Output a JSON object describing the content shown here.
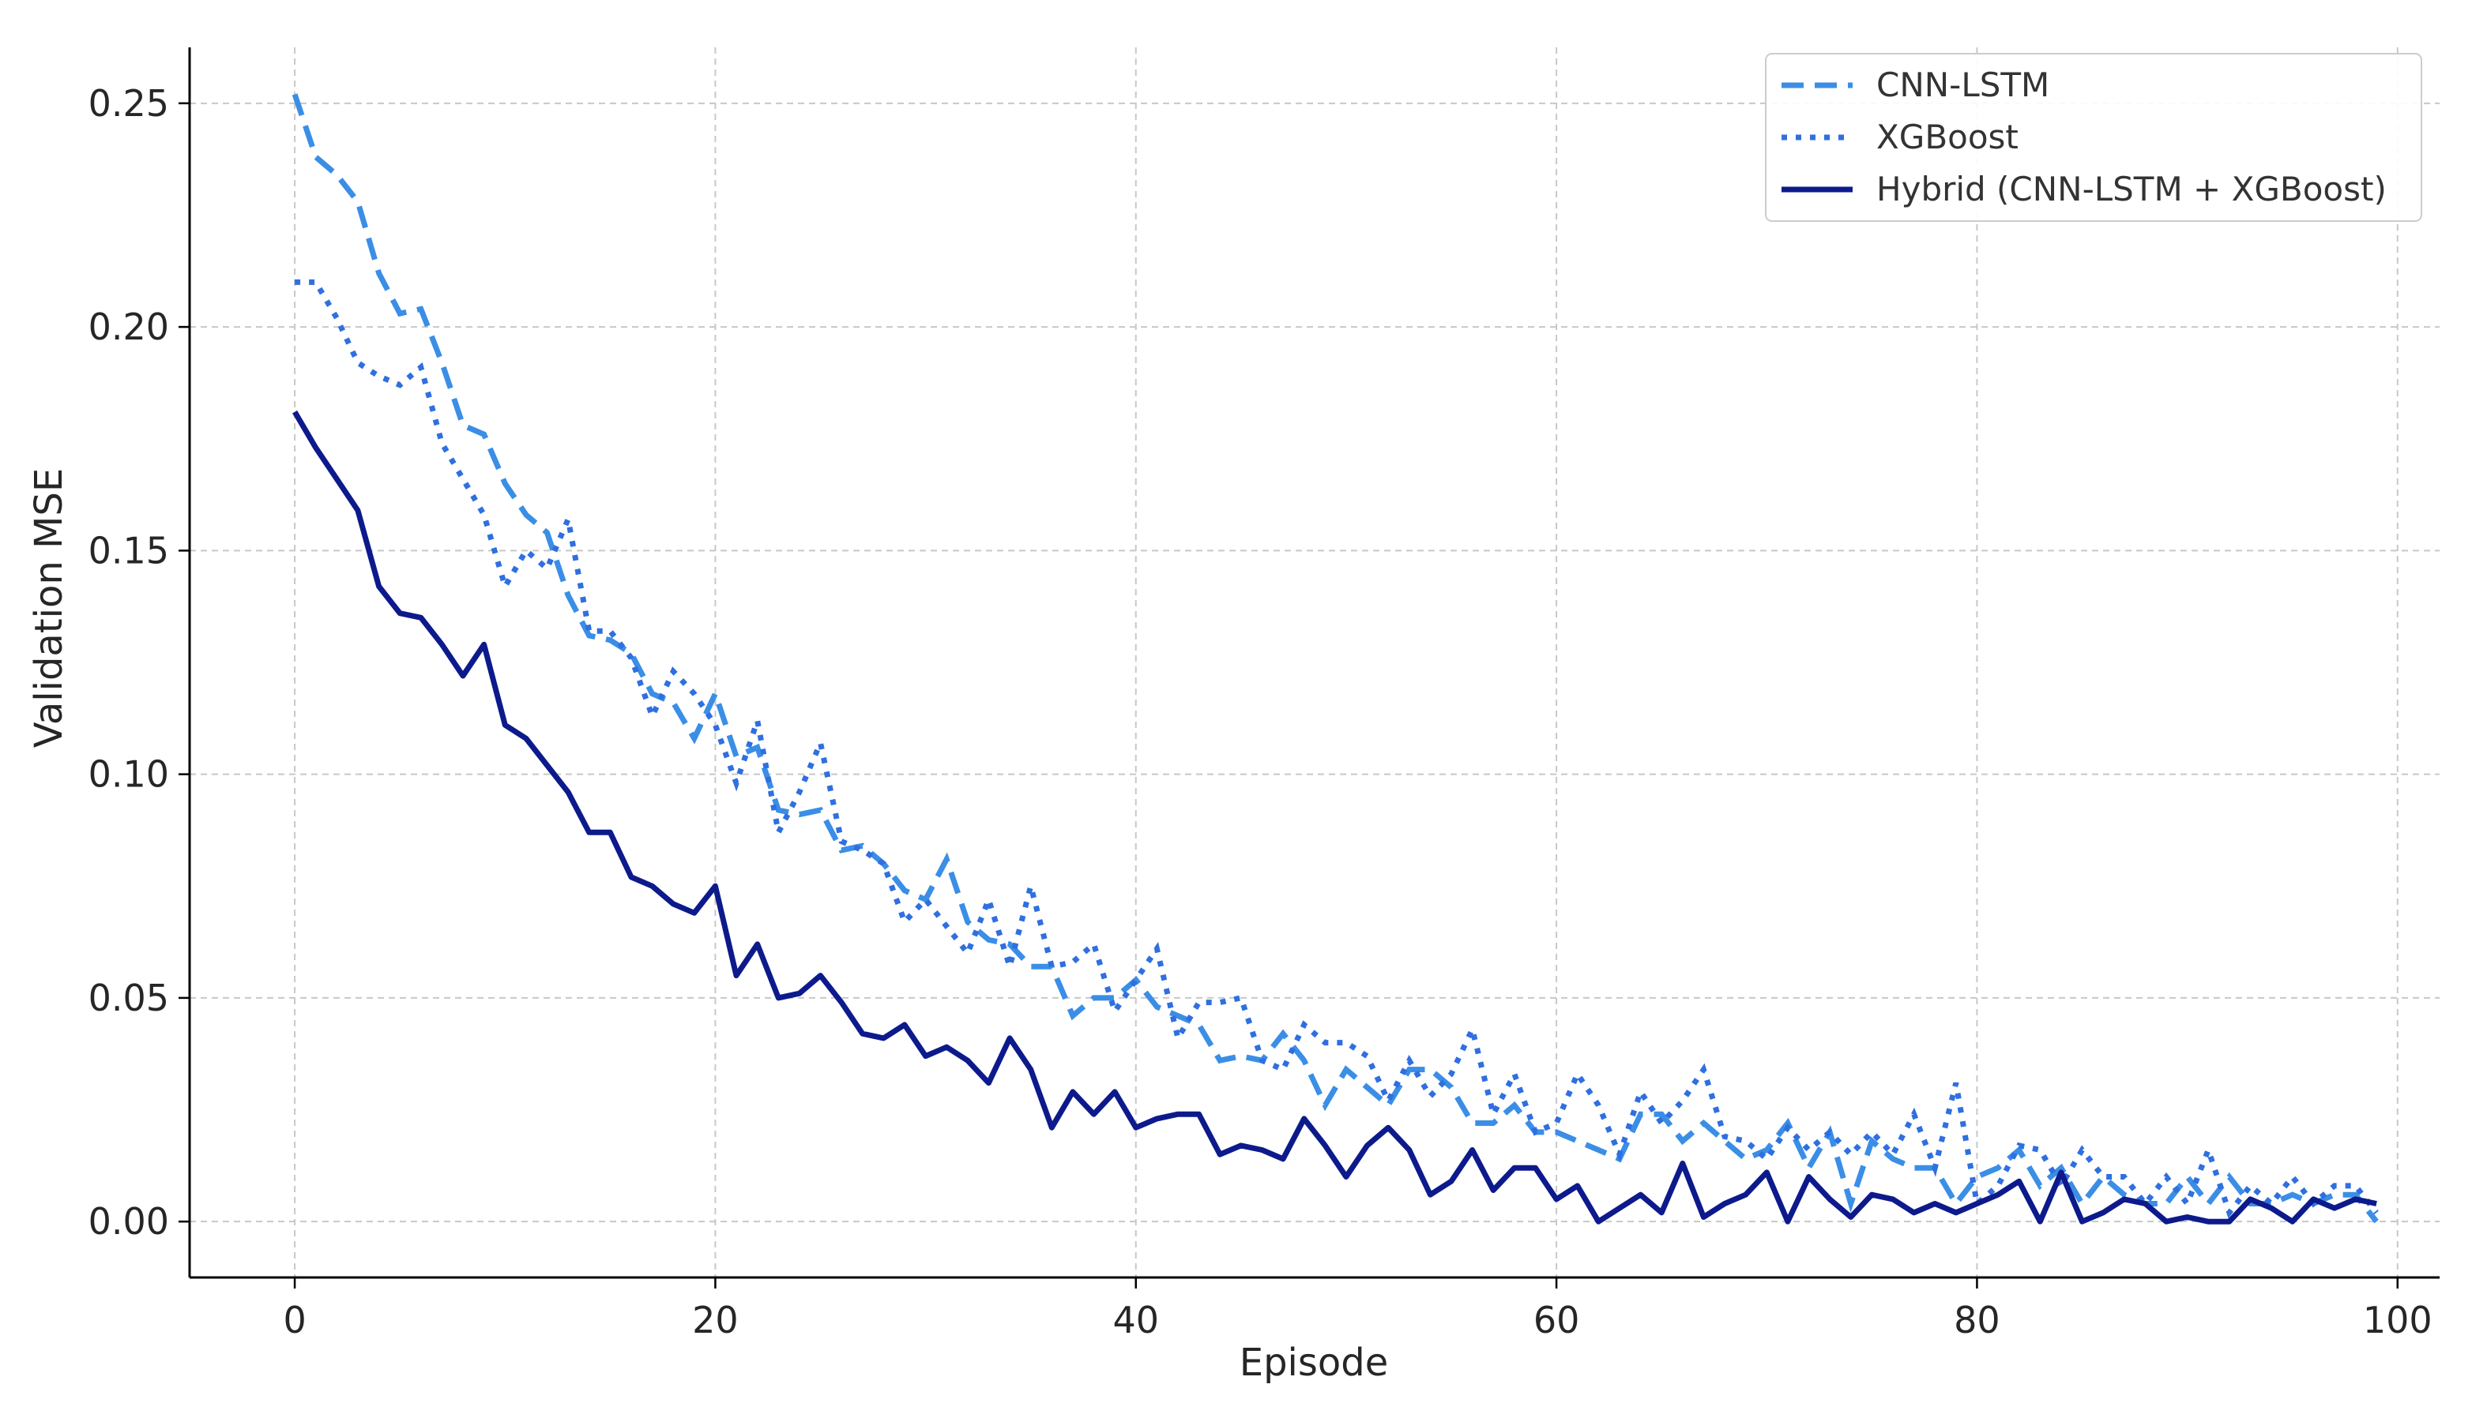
{
  "chart_data": {
    "type": "line",
    "title": "",
    "xlabel": "Episode",
    "ylabel": "Validation MSE",
    "xlim": [
      -5,
      102
    ],
    "ylim": [
      -0.0125,
      0.2625
    ],
    "xticks": [
      0,
      20,
      40,
      60,
      80,
      100
    ],
    "xtick_labels": [
      "0",
      "20",
      "40",
      "60",
      "80",
      "100"
    ],
    "yticks": [
      0.0,
      0.05,
      0.1,
      0.15,
      0.2,
      0.25
    ],
    "ytick_labels": [
      "0.00",
      "0.05",
      "0.10",
      "0.15",
      "0.20",
      "0.25"
    ],
    "grid": true,
    "legend_position": "top-right",
    "series": [
      {
        "name": "CNN-LSTM",
        "style": "dashed",
        "color": "#3a8ee6",
        "x": [
          0,
          1,
          2,
          3,
          4,
          5,
          6,
          7,
          8,
          9,
          10,
          11,
          12,
          13,
          14,
          15,
          16,
          17,
          18,
          19,
          20,
          21,
          22,
          23,
          24,
          25,
          26,
          27,
          28,
          29,
          30,
          31,
          32,
          33,
          34,
          35,
          36,
          37,
          38,
          39,
          40,
          41,
          42,
          43,
          44,
          45,
          46,
          47,
          48,
          49,
          50,
          51,
          52,
          53,
          54,
          55,
          56,
          57,
          58,
          59,
          60,
          61,
          62,
          63,
          64,
          65,
          66,
          67,
          68,
          69,
          70,
          71,
          72,
          73,
          74,
          75,
          76,
          77,
          78,
          79,
          80,
          81,
          82,
          83,
          84,
          85,
          86,
          87,
          88,
          89,
          90,
          91,
          92,
          93,
          94,
          95,
          96,
          97,
          98,
          99
        ],
        "values": [
          0.252,
          0.238,
          0.234,
          0.228,
          0.212,
          0.203,
          0.204,
          0.192,
          0.178,
          0.176,
          0.165,
          0.158,
          0.154,
          0.14,
          0.131,
          0.13,
          0.127,
          0.118,
          0.116,
          0.108,
          0.118,
          0.104,
          0.106,
          0.092,
          0.091,
          0.092,
          0.083,
          0.084,
          0.08,
          0.074,
          0.072,
          0.081,
          0.067,
          0.063,
          0.062,
          0.057,
          0.057,
          0.046,
          0.05,
          0.05,
          0.054,
          0.048,
          0.046,
          0.044,
          0.036,
          0.037,
          0.036,
          0.042,
          0.036,
          0.026,
          0.034,
          0.03,
          0.026,
          0.034,
          0.034,
          0.03,
          0.022,
          0.022,
          0.026,
          0.02,
          0.02,
          0.018,
          0.016,
          0.014,
          0.024,
          0.024,
          0.018,
          0.022,
          0.018,
          0.014,
          0.016,
          0.022,
          0.012,
          0.02,
          0.004,
          0.018,
          0.014,
          0.012,
          0.012,
          0.004,
          0.01,
          0.012,
          0.016,
          0.008,
          0.012,
          0.004,
          0.01,
          0.006,
          0.004,
          0.004,
          0.01,
          0.004,
          0.01,
          0.004,
          0.004,
          0.006,
          0.004,
          0.006,
          0.006,
          0.0
        ]
      },
      {
        "name": "XGBoost",
        "style": "dotted",
        "color": "#2f6fe0",
        "x": [
          0,
          1,
          2,
          3,
          4,
          5,
          6,
          7,
          8,
          9,
          10,
          11,
          12,
          13,
          14,
          15,
          16,
          17,
          18,
          19,
          20,
          21,
          22,
          23,
          24,
          25,
          26,
          27,
          28,
          29,
          30,
          31,
          32,
          33,
          34,
          35,
          36,
          37,
          38,
          39,
          40,
          41,
          42,
          43,
          44,
          45,
          46,
          47,
          48,
          49,
          50,
          51,
          52,
          53,
          54,
          55,
          56,
          57,
          58,
          59,
          60,
          61,
          62,
          63,
          64,
          65,
          66,
          67,
          68,
          69,
          70,
          71,
          72,
          73,
          74,
          75,
          76,
          77,
          78,
          79,
          80,
          81,
          82,
          83,
          84,
          85,
          86,
          87,
          88,
          89,
          90,
          91,
          92,
          93,
          94,
          95,
          96,
          97,
          98,
          99
        ],
        "values": [
          0.21,
          0.21,
          0.202,
          0.192,
          0.189,
          0.187,
          0.191,
          0.174,
          0.166,
          0.158,
          0.142,
          0.15,
          0.146,
          0.157,
          0.132,
          0.132,
          0.126,
          0.113,
          0.123,
          0.118,
          0.111,
          0.098,
          0.112,
          0.087,
          0.096,
          0.107,
          0.085,
          0.083,
          0.08,
          0.067,
          0.072,
          0.066,
          0.06,
          0.072,
          0.057,
          0.075,
          0.057,
          0.058,
          0.062,
          0.047,
          0.054,
          0.061,
          0.041,
          0.049,
          0.049,
          0.05,
          0.036,
          0.034,
          0.044,
          0.04,
          0.04,
          0.037,
          0.027,
          0.036,
          0.028,
          0.033,
          0.043,
          0.024,
          0.033,
          0.02,
          0.022,
          0.033,
          0.026,
          0.015,
          0.029,
          0.022,
          0.027,
          0.034,
          0.019,
          0.018,
          0.014,
          0.021,
          0.016,
          0.02,
          0.015,
          0.02,
          0.015,
          0.024,
          0.012,
          0.031,
          0.004,
          0.008,
          0.017,
          0.016,
          0.008,
          0.016,
          0.01,
          0.01,
          0.004,
          0.01,
          0.004,
          0.016,
          0.002,
          0.008,
          0.004,
          0.01,
          0.004,
          0.008,
          0.008,
          0.002
        ]
      },
      {
        "name": "Hybrid (CNN-LSTM + XGBoost)",
        "style": "solid",
        "color": "#0d1a8c",
        "x": [
          0,
          1,
          2,
          3,
          4,
          5,
          6,
          7,
          8,
          9,
          10,
          11,
          12,
          13,
          14,
          15,
          16,
          17,
          18,
          19,
          20,
          21,
          22,
          23,
          24,
          25,
          26,
          27,
          28,
          29,
          30,
          31,
          32,
          33,
          34,
          35,
          36,
          37,
          38,
          39,
          40,
          41,
          42,
          43,
          44,
          45,
          46,
          47,
          48,
          49,
          50,
          51,
          52,
          53,
          54,
          55,
          56,
          57,
          58,
          59,
          60,
          61,
          62,
          63,
          64,
          65,
          66,
          67,
          68,
          69,
          70,
          71,
          72,
          73,
          74,
          75,
          76,
          77,
          78,
          79,
          80,
          81,
          82,
          83,
          84,
          85,
          86,
          87,
          88,
          89,
          90,
          91,
          92,
          93,
          94,
          95,
          96,
          97,
          98,
          99
        ],
        "values": [
          0.181,
          0.173,
          0.166,
          0.159,
          0.142,
          0.136,
          0.135,
          0.129,
          0.122,
          0.129,
          0.111,
          0.108,
          0.102,
          0.096,
          0.087,
          0.087,
          0.077,
          0.075,
          0.071,
          0.069,
          0.075,
          0.055,
          0.062,
          0.05,
          0.051,
          0.055,
          0.049,
          0.042,
          0.041,
          0.044,
          0.037,
          0.039,
          0.036,
          0.031,
          0.041,
          0.034,
          0.021,
          0.029,
          0.024,
          0.029,
          0.021,
          0.023,
          0.024,
          0.024,
          0.015,
          0.017,
          0.016,
          0.014,
          0.023,
          0.017,
          0.01,
          0.017,
          0.021,
          0.016,
          0.006,
          0.009,
          0.016,
          0.007,
          0.012,
          0.012,
          0.005,
          0.008,
          0.0,
          0.003,
          0.006,
          0.002,
          0.013,
          0.001,
          0.004,
          0.006,
          0.011,
          0.0,
          0.01,
          0.005,
          0.001,
          0.006,
          0.005,
          0.002,
          0.004,
          0.002,
          0.004,
          0.006,
          0.009,
          0.0,
          0.011,
          0.0,
          0.002,
          0.005,
          0.004,
          0.0,
          0.001,
          0.0,
          0.0,
          0.005,
          0.003,
          0.0,
          0.005,
          0.003,
          0.005,
          0.004
        ]
      }
    ]
  }
}
